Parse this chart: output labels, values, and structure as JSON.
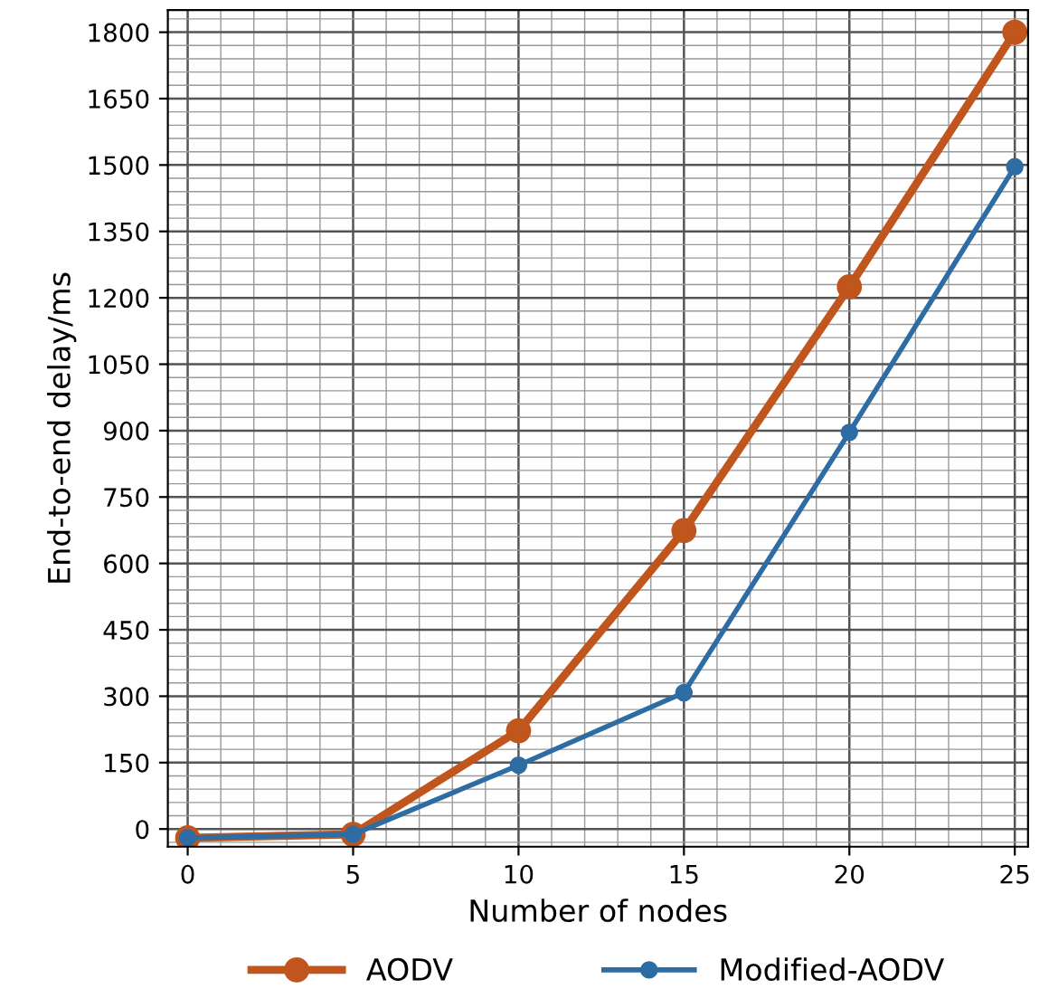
{
  "chart_data": {
    "type": "line",
    "xlabel": "Number of nodes",
    "ylabel": "End-to-end delay/ms",
    "x": [
      0,
      5,
      10,
      15,
      20,
      25
    ],
    "series": [
      {
        "name": "AODV",
        "color": "#c0561d",
        "values": [
          -20,
          -12,
          222,
          674,
          1225,
          1800
        ]
      },
      {
        "name": "Modified-AODV",
        "color": "#2e6ca4",
        "values": [
          -20,
          -12,
          144,
          308,
          896,
          1496
        ]
      }
    ],
    "xlim": [
      -0.6,
      25.4
    ],
    "xticks": [
      0,
      5,
      10,
      15,
      20,
      25
    ],
    "ylim": [
      -40,
      1850
    ],
    "yticks": [
      0,
      150,
      300,
      450,
      600,
      750,
      900,
      1050,
      1200,
      1350,
      1500,
      1650,
      1800
    ],
    "grid": true,
    "legend": "bottom",
    "marker": "circle",
    "line_style": "solid"
  }
}
